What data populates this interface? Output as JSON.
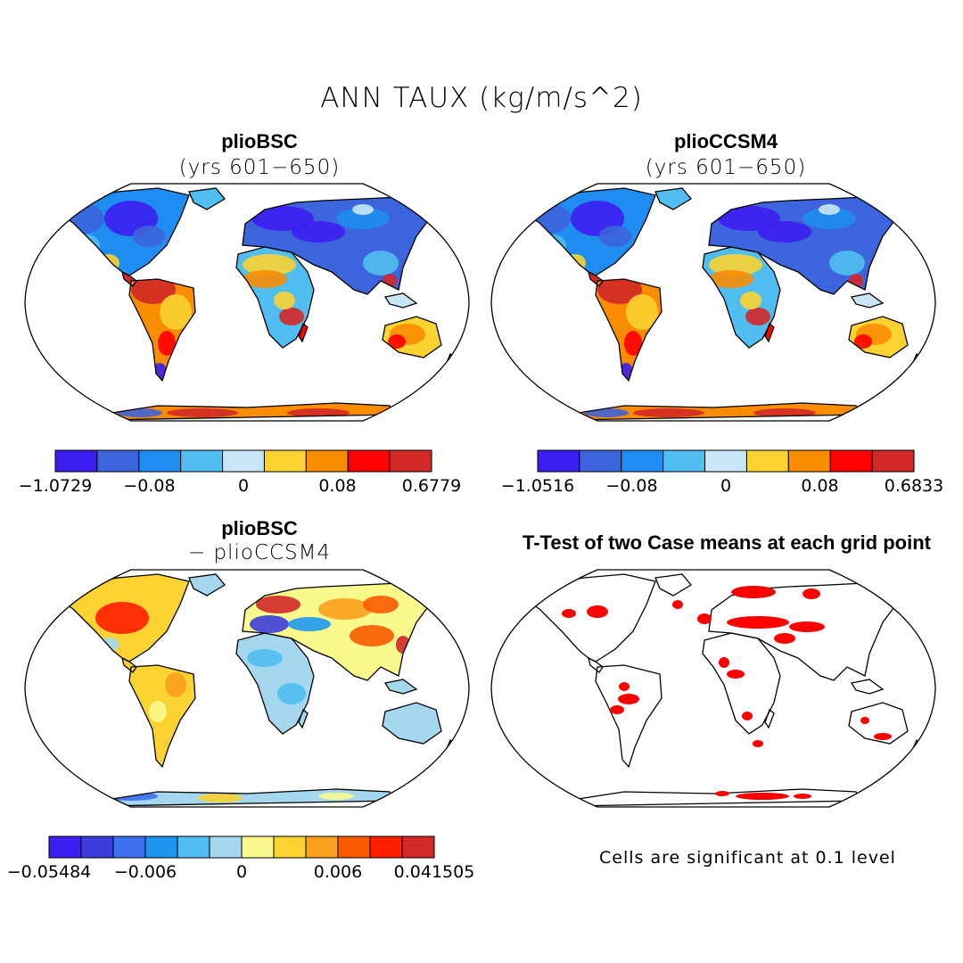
{
  "title": "ANN TAUX (kg/m/s^2)",
  "colors": {
    "land_neg": [
      "#3c1ef0",
      "#3c64dc",
      "#1e8cf0",
      "#50bef0",
      "#c8e6f5"
    ],
    "land_pos": [
      "#fad232",
      "#fa8c00",
      "#ff0000",
      "#d22828"
    ],
    "diff": [
      "#3c1ef0",
      "#3c3cdc",
      "#3c6ef0",
      "#1e96f0",
      "#50bef0",
      "#a5d7ee",
      "#fafa8c",
      "#fad232",
      "#faa01e",
      "#fa5a00",
      "#ff1e00",
      "#d22828"
    ],
    "significant": "#ff0000"
  },
  "panels": {
    "top_left": {
      "title": "plioBSC",
      "subtitle": "(yrs 601−650)",
      "colorbar": {
        "labels": [
          "−1.0729",
          "−0.08",
          "0",
          "0.08",
          "0.6779"
        ]
      }
    },
    "top_right": {
      "title": "plioCCSM4",
      "subtitle": "(yrs 601−650)",
      "colorbar": {
        "labels": [
          "−1.0516",
          "−0.08",
          "0",
          "0.08",
          "0.6833"
        ]
      }
    },
    "bottom_left": {
      "title": "plioBSC",
      "subtitle": "− plioCCSM4",
      "colorbar": {
        "labels": [
          "−0.05484",
          "−0.006",
          "0",
          "0.006",
          "0.041505"
        ]
      }
    },
    "bottom_right": {
      "title": "T-Test of two Case means at each grid point",
      "note": "Cells are significant at 0.1 level"
    }
  }
}
